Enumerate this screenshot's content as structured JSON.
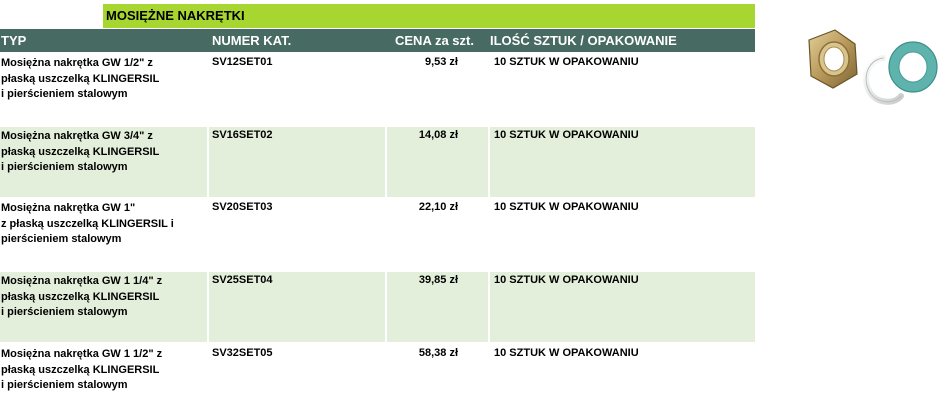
{
  "title": "MOSIĘŻNE NAKRĘTKI",
  "columns": {
    "typ": "TYP",
    "numer": "NUMER KAT.",
    "cena": "CENA za szt.",
    "ilosc": "ILOŚĆ SZTUK / OPAKOWANIE"
  },
  "rows": [
    {
      "typ": [
        "Mosiężna nakrętka GW  1/2\" z",
        "płaską uszczelką  KLINGERSIL",
        "i pierścieniem stalowym"
      ],
      "numer": "SV12SET01",
      "cena": "9,53 zł",
      "ilosc": "10 SZTUK W OPAKOWANIU"
    },
    {
      "typ": [
        "Mosiężna nakrętka GW 3/4\" z",
        "płaską uszczelką KLINGERSIL",
        "i pierścieniem stalowym"
      ],
      "numer": "SV16SET02",
      "cena": "14,08 zł",
      "ilosc": "10 SZTUK W OPAKOWANIU"
    },
    {
      "typ": [
        "Mosiężna nakrętka GW 1\"",
        "z płaską uszczelką  KLINGERSIL   i",
        "pierścieniem stalowym"
      ],
      "numer": "SV20SET03",
      "cena": "22,10 zł",
      "ilosc": "10 SZTUK W OPAKOWANIU"
    },
    {
      "typ": [
        "Mosiężna nakrętka GW 1 1/4\" z",
        "płaską uszczelką KLINGERSIL",
        "i pierścieniem stalowym"
      ],
      "numer": "SV25SET04",
      "cena": "39,85 zł",
      "ilosc": "10 SZTUK W OPAKOWANIU"
    },
    {
      "typ": [
        "Mosiężna nakrętka GW 1 1/2\" z",
        "płaską uszczelką KLINGERSIL",
        "i pierścieniem stalowym"
      ],
      "numer": "SV32SET05",
      "cena": "58,38 zł",
      "ilosc": "10 SZTUK W OPAKOWANIU"
    }
  ],
  "colors": {
    "title_bg": "#a7d631",
    "header_bg": "#476a62",
    "shaded_row_bg": "#e4efdb"
  }
}
